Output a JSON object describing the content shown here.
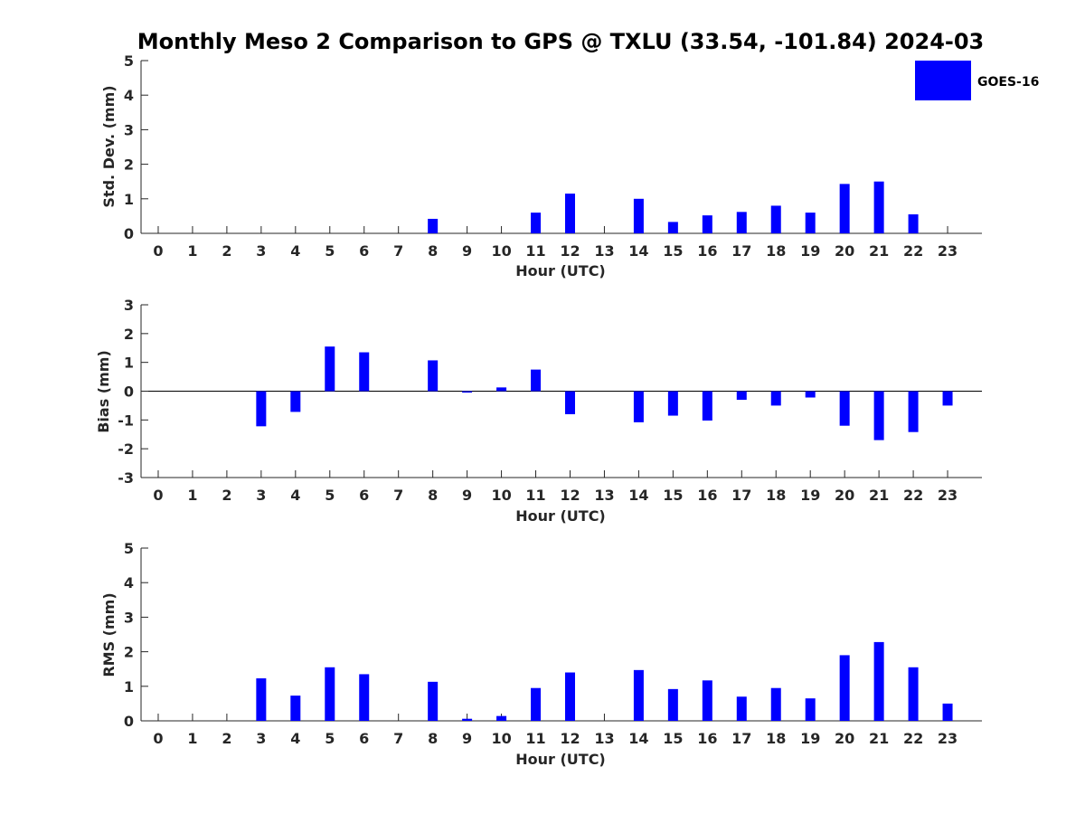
{
  "title": "Monthly Meso 2 Comparison to GPS @ TXLU (33.54, -101.84) 2024-03",
  "legend": {
    "label": "GOES-16",
    "position": "top-right"
  },
  "colors": {
    "bar": "#0000ff",
    "axis": "#262626"
  },
  "chart_data": [
    {
      "type": "bar",
      "ylabel": "Std. Dev. (mm)",
      "xlabel": "Hour (UTC)",
      "categories": [
        "0",
        "1",
        "2",
        "3",
        "4",
        "5",
        "6",
        "7",
        "8",
        "9",
        "10",
        "11",
        "12",
        "13",
        "14",
        "15",
        "16",
        "17",
        "18",
        "19",
        "20",
        "21",
        "22",
        "23"
      ],
      "series": [
        {
          "name": "GOES-16",
          "values": [
            0,
            0,
            0,
            0,
            0,
            0,
            0,
            0,
            0.42,
            0,
            0,
            0.6,
            1.15,
            0,
            1.0,
            0.33,
            0.52,
            0.62,
            0.8,
            0.6,
            1.43,
            1.5,
            0.55,
            0
          ]
        }
      ],
      "ylim": [
        0,
        5
      ],
      "yticks": [
        "0",
        "1",
        "2",
        "3",
        "4",
        "5"
      ]
    },
    {
      "type": "bar",
      "ylabel": "Bias (mm)",
      "xlabel": "Hour (UTC)",
      "categories": [
        "0",
        "1",
        "2",
        "3",
        "4",
        "5",
        "6",
        "7",
        "8",
        "9",
        "10",
        "11",
        "12",
        "13",
        "14",
        "15",
        "16",
        "17",
        "18",
        "19",
        "20",
        "21",
        "22",
        "23"
      ],
      "series": [
        {
          "name": "GOES-16",
          "values": [
            0,
            0,
            0,
            -1.22,
            -0.72,
            1.55,
            1.35,
            0,
            1.07,
            -0.05,
            0.13,
            0.75,
            -0.8,
            0,
            -1.08,
            -0.85,
            -1.02,
            -0.3,
            -0.5,
            -0.22,
            -1.2,
            -1.7,
            -1.42,
            -0.5
          ]
        }
      ],
      "ylim": [
        -3,
        3
      ],
      "yticks": [
        "-3",
        "-2",
        "-1",
        "0",
        "1",
        "2",
        "3"
      ]
    },
    {
      "type": "bar",
      "ylabel": "RMS (mm)",
      "xlabel": "Hour (UTC)",
      "categories": [
        "0",
        "1",
        "2",
        "3",
        "4",
        "5",
        "6",
        "7",
        "8",
        "9",
        "10",
        "11",
        "12",
        "13",
        "14",
        "15",
        "16",
        "17",
        "18",
        "19",
        "20",
        "21",
        "22",
        "23"
      ],
      "series": [
        {
          "name": "GOES-16",
          "values": [
            0,
            0,
            0,
            1.23,
            0.73,
            1.55,
            1.35,
            0,
            1.13,
            0.06,
            0.14,
            0.95,
            1.4,
            0,
            1.47,
            0.92,
            1.17,
            0.7,
            0.95,
            0.65,
            1.9,
            2.28,
            1.55,
            0.5
          ]
        }
      ],
      "ylim": [
        0,
        5
      ],
      "yticks": [
        "0",
        "1",
        "2",
        "3",
        "4",
        "5"
      ]
    }
  ]
}
